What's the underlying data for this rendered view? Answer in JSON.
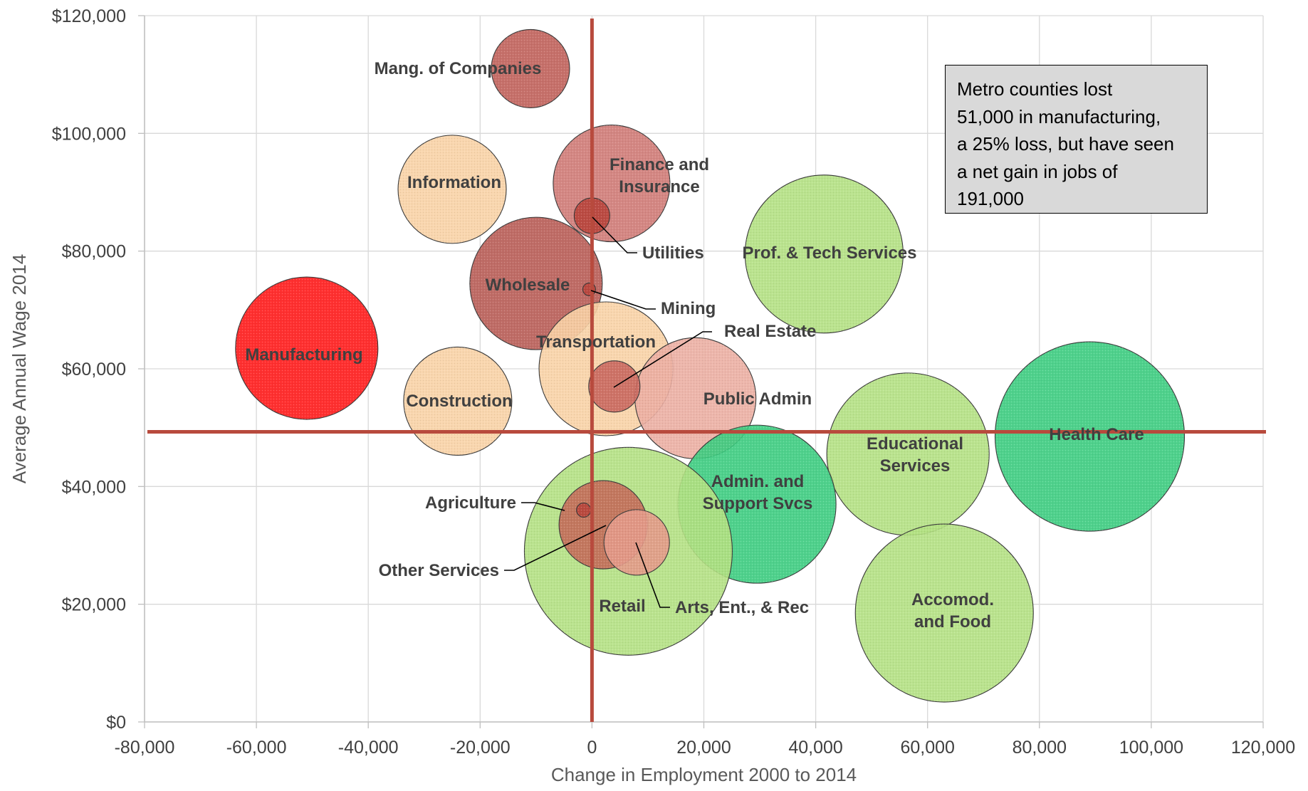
{
  "chart_data": {
    "type": "bubble",
    "xlabel": "Change in Employment 2000 to 2014",
    "ylabel": "Average Annual Wage 2014",
    "xlim": [
      -80000,
      120000
    ],
    "ylim": [
      0,
      120000
    ],
    "x_ticks": [
      "-80,000",
      "-60,000",
      "-40,000",
      "-20,000",
      "0",
      "20,000",
      "40,000",
      "60,000",
      "80,000",
      "100,000",
      "120,000"
    ],
    "y_ticks": [
      "$0",
      "$20,000",
      "$40,000",
      "$60,000",
      "$80,000",
      "$100,000",
      "$120,000"
    ],
    "grid": true,
    "reference_lines": {
      "x": 0,
      "y": 49300,
      "color": "#b84a3d"
    },
    "annotation": [
      "Metro counties lost",
      "51,000 in manufacturing,",
      "a 25% loss, but have seen",
      "a net gain in jobs of",
      "191,000"
    ],
    "points": [
      {
        "name": "Manufacturing",
        "label": [
          "Manufacturing"
        ],
        "x": -51000,
        "y": 63500,
        "r": 100,
        "color": "#ff1a1a"
      },
      {
        "name": "Mang. of Companies",
        "label": [
          "Mang. of Companies"
        ],
        "x": -11000,
        "y": 111000,
        "r": 55,
        "color": "#c0605a"
      },
      {
        "name": "Information",
        "label": [
          "Information"
        ],
        "x": -25000,
        "y": 90500,
        "r": 76,
        "color": "#f8d2a5"
      },
      {
        "name": "Finance and Insurance",
        "label": [
          "Finance and",
          "Insurance"
        ],
        "x": 3500,
        "y": 91500,
        "r": 82,
        "color": "#cf7a76"
      },
      {
        "name": "Wholesale",
        "label": [
          "Wholesale"
        ],
        "x": -10000,
        "y": 74500,
        "r": 93,
        "color": "#b85c55"
      },
      {
        "name": "Construction",
        "label": [
          "Construction"
        ],
        "x": -24000,
        "y": 54500,
        "r": 76,
        "color": "#f8d2a5"
      },
      {
        "name": "Transportation",
        "label": [
          "Transportation"
        ],
        "x": 2500,
        "y": 60000,
        "r": 94,
        "color": "#f8d2a5"
      },
      {
        "name": "Public Admin",
        "label": [
          "Public Admin"
        ],
        "x": 18500,
        "y": 55000,
        "r": 85,
        "color": "#ebaea2"
      },
      {
        "name": "Real Estate",
        "label": [
          "Real Estate"
        ],
        "x": 4000,
        "y": 57000,
        "r": 36,
        "color": "#c9685f"
      },
      {
        "name": "Utilities",
        "label": [
          "Utilities"
        ],
        "x": 0,
        "y": 86000,
        "r": 25,
        "color": "#b8453c"
      },
      {
        "name": "Mining",
        "label": [
          "Mining"
        ],
        "x": -500,
        "y": 73500,
        "r": 9,
        "color": "#b8453c"
      },
      {
        "name": "Prof. & Tech Services",
        "label": [
          "Prof. & Tech Services"
        ],
        "x": 41500,
        "y": 79500,
        "r": 111,
        "color": "#b2e082"
      },
      {
        "name": "Health Care",
        "label": [
          "Health Care"
        ],
        "x": 89000,
        "y": 48500,
        "r": 133,
        "color": "#3ccc80"
      },
      {
        "name": "Educational Services",
        "label": [
          "Educational",
          "Services"
        ],
        "x": 56500,
        "y": 45500,
        "r": 114,
        "color": "#b2e082"
      },
      {
        "name": "Admin. and Support Svcs",
        "label": [
          "Admin. and",
          "Support Svcs"
        ],
        "x": 29500,
        "y": 37000,
        "r": 111,
        "color": "#3ccc80"
      },
      {
        "name": "Accomod. and Food",
        "label": [
          "Accomod.",
          "and Food"
        ],
        "x": 63000,
        "y": 18500,
        "r": 125,
        "color": "#b2e082"
      },
      {
        "name": "Retail",
        "label": [
          "Retail"
        ],
        "x": 6500,
        "y": 29000,
        "r": 146,
        "color": "#b2e082"
      },
      {
        "name": "Other Services",
        "label": [
          "Other Services"
        ],
        "x": 2000,
        "y": 33500,
        "r": 62,
        "color": "#c46c5a"
      },
      {
        "name": "Arts, Ent., & Rec",
        "label": [
          "Arts, Ent., & Rec"
        ],
        "x": 8000,
        "y": 30500,
        "r": 46,
        "color": "#e49a8a"
      },
      {
        "name": "Agriculture",
        "label": [
          "Agriculture"
        ],
        "x": -1500,
        "y": 36000,
        "r": 10,
        "color": "#b8453c"
      }
    ]
  }
}
